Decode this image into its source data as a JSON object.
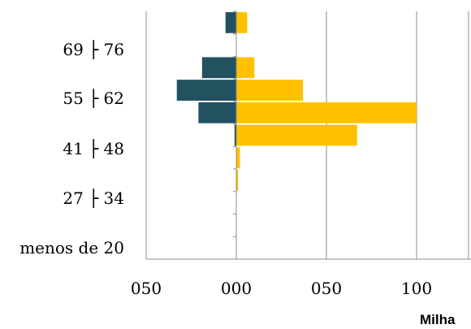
{
  "chart_data": {
    "type": "bar",
    "orientation": "horizontal",
    "title": "",
    "xlabel": "Milha",
    "ylabel": "",
    "y_tick_labels": [
      "69 ├ 76",
      "55 ├ 62",
      "41 ├ 48",
      "27 ├ 34",
      "menos de 20"
    ],
    "x_tick_labels": [
      "050",
      "000",
      "050",
      "100"
    ],
    "xlim": [
      -50,
      100
    ],
    "grid": true,
    "legend": "none",
    "colors": {
      "left": "#22515f",
      "right": "#ffc000",
      "grid": "#8c8c8c"
    },
    "bars": [
      {
        "left": -6,
        "right": 6
      },
      {
        "left": 0,
        "right": 0
      },
      {
        "left": -19,
        "right": 10
      },
      {
        "left": -33,
        "right": 37
      },
      {
        "left": -21,
        "right": 100
      },
      {
        "left": -1,
        "right": 67
      },
      {
        "left": 0,
        "right": 2
      },
      {
        "left": 0,
        "right": 1
      },
      {
        "left": 0,
        "right": 0
      },
      {
        "left": 0,
        "right": 0
      },
      {
        "left": 0,
        "right": 0
      }
    ]
  }
}
